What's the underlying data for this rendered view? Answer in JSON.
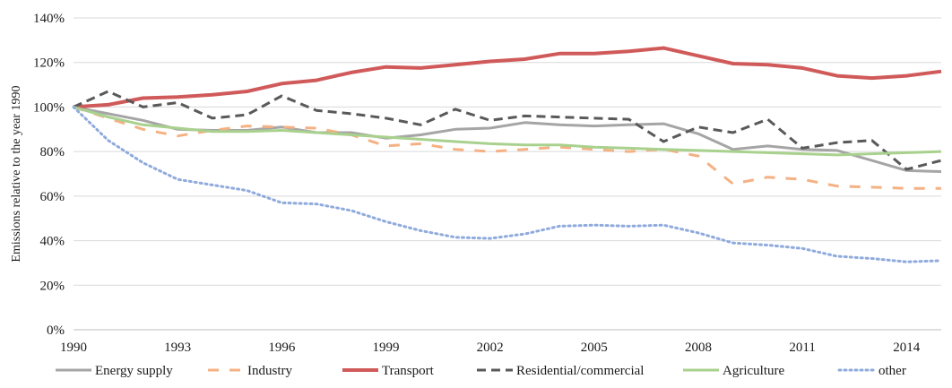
{
  "chart_data": {
    "type": "line",
    "title": "",
    "xlabel": "",
    "ylabel": "Emissions relative to the year 1990",
    "x": [
      1990,
      1991,
      1992,
      1993,
      1994,
      1995,
      1996,
      1997,
      1998,
      1999,
      2000,
      2001,
      2002,
      2003,
      2004,
      2005,
      2006,
      2007,
      2008,
      2009,
      2010,
      2011,
      2012,
      2013,
      2014,
      2015
    ],
    "x_ticks": [
      1990,
      1993,
      1996,
      1999,
      2002,
      2005,
      2008,
      2011,
      2014
    ],
    "x_tick_labels": [
      "1990",
      "1993",
      "1996",
      "1999",
      "2002",
      "2005",
      "2008",
      "2011",
      "2014"
    ],
    "xlim": [
      1990,
      2015
    ],
    "ylim": [
      0,
      140
    ],
    "y_ticks": [
      0,
      20,
      40,
      60,
      80,
      100,
      120,
      140
    ],
    "y_tick_labels": [
      "0%",
      "20%",
      "40%",
      "60%",
      "80%",
      "100%",
      "120%",
      "140%"
    ],
    "grid": "horizontal",
    "legend_position": "bottom",
    "series": [
      {
        "name": "Energy supply",
        "color": "#a5a5a5",
        "dash": "solid",
        "width": 3,
        "values": [
          100,
          97,
          94,
          90,
          89.5,
          89.5,
          91,
          88.5,
          88.5,
          86,
          87.5,
          90,
          90.5,
          93,
          92,
          91.5,
          92,
          92.5,
          88,
          81,
          82.5,
          81,
          80.5,
          76,
          71.5,
          71
        ]
      },
      {
        "name": "Industry",
        "color": "#f4b183",
        "dash": "longdash",
        "width": 3,
        "values": [
          100,
          95,
          90,
          87,
          89.5,
          91.5,
          91,
          90.5,
          87.5,
          82.5,
          83.5,
          81,
          80,
          81,
          82,
          81,
          80,
          81,
          78,
          65.5,
          68.5,
          67.5,
          64.5,
          64,
          63.5,
          63.5
        ]
      },
      {
        "name": "Transport",
        "color": "#d05a5a",
        "dash": "solid",
        "width": 4,
        "values": [
          100,
          101,
          104,
          104.5,
          105.5,
          107,
          110.5,
          112,
          115.5,
          118,
          117.5,
          119,
          120.5,
          121.5,
          124,
          124,
          125,
          126.5,
          123,
          119.5,
          119,
          117.5,
          114,
          113,
          114,
          116
        ]
      },
      {
        "name": "Residential/commercial",
        "color": "#595959",
        "dash": "dash",
        "width": 3,
        "values": [
          100,
          107,
          100,
          102,
          95,
          96.5,
          105,
          98.5,
          97,
          95,
          92,
          99,
          94,
          96,
          95.5,
          95,
          94.5,
          84.5,
          91,
          88.5,
          94.5,
          81.5,
          84,
          85,
          72,
          76
        ]
      },
      {
        "name": "Agriculture",
        "color": "#a9d18e",
        "dash": "solid",
        "width": 3,
        "values": [
          100,
          95.5,
          92,
          90.5,
          89,
          89,
          89.5,
          88.5,
          87.5,
          86.5,
          85.5,
          84.5,
          83.5,
          83,
          83,
          82,
          81.5,
          81,
          80.5,
          80,
          79.5,
          79,
          78.5,
          79,
          79.5,
          80
        ]
      },
      {
        "name": "other",
        "color": "#8faadc",
        "dash": "dot",
        "width": 3,
        "values": [
          100,
          85,
          75,
          67.5,
          65,
          62.5,
          57,
          56.5,
          53.5,
          48.5,
          44.5,
          41.5,
          41,
          43,
          46.5,
          47,
          46.5,
          47,
          43.5,
          39,
          38,
          36.5,
          33,
          32,
          30.5,
          31
        ]
      }
    ]
  }
}
